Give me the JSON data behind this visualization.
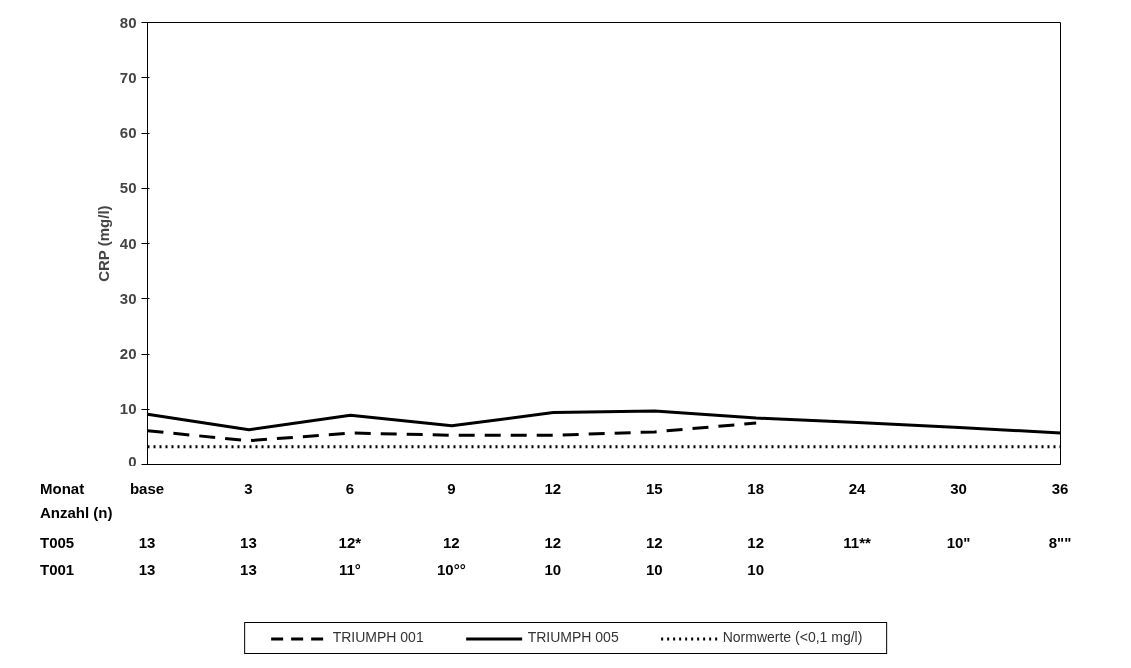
{
  "chart_data": {
    "type": "line",
    "ylabel": "CRP (mg/l)",
    "xlabel": "Monat",
    "categories": [
      "base",
      "3",
      "6",
      "9",
      "12",
      "15",
      "18",
      "24",
      "30",
      "36"
    ],
    "ylim": [
      0,
      80
    ],
    "yticks": [
      0,
      10,
      20,
      30,
      40,
      50,
      60,
      70,
      80
    ],
    "grid": false,
    "legend": "bottom",
    "series": [
      {
        "name": "TRIUMPH 001",
        "color": "#000000",
        "line_style": "dashed",
        "values": [
          6.1,
          4.3,
          5.7,
          5.3,
          5.3,
          5.9,
          7.5,
          null,
          null,
          null
        ]
      },
      {
        "name": "TRIUMPH 005",
        "color": "#000000",
        "line_style": "solid",
        "values": [
          9.1,
          6.3,
          8.9,
          7.0,
          9.4,
          9.7,
          8.4,
          7.6,
          6.7,
          5.7
        ]
      },
      {
        "name": "Normwerte (<0,1 mg/l)",
        "color": "#000000",
        "line_style": "dotted",
        "values": [
          3.2,
          3.2,
          3.2,
          3.2,
          3.2,
          3.2,
          3.2,
          3.2,
          3.2,
          3.2
        ]
      }
    ],
    "annotations": [
      "Anzahl (n)",
      "T005",
      "13",
      "13",
      "12*",
      "12",
      "12",
      "12",
      "12",
      "11**",
      "10\"",
      "8\"\"",
      "T001",
      "13",
      "13",
      "11°",
      "10°°",
      "10",
      "10",
      "10"
    ]
  }
}
